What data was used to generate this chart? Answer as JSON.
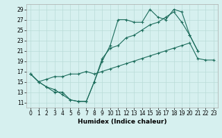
{
  "xlabel": "Humidex (Indice chaleur)",
  "line_color": "#1a6b5a",
  "bg_color": "#d6f0ef",
  "grid_color": "#b8dbd8",
  "xlim": [
    -0.5,
    23.5
  ],
  "ylim": [
    10,
    30
  ],
  "xticks": [
    0,
    1,
    2,
    3,
    4,
    5,
    6,
    7,
    8,
    9,
    10,
    11,
    12,
    13,
    14,
    15,
    16,
    17,
    18,
    19,
    20,
    21,
    22,
    23
  ],
  "yticks": [
    11,
    13,
    15,
    17,
    19,
    21,
    23,
    25,
    27,
    29
  ],
  "line1_x": [
    0,
    1,
    2,
    3,
    4,
    5,
    6,
    7,
    8,
    9,
    10,
    11,
    12,
    13,
    14,
    15,
    16,
    17,
    18,
    19,
    20,
    21
  ],
  "line1_y": [
    16.5,
    15.0,
    14.0,
    13.5,
    12.5,
    11.5,
    11.2,
    11.2,
    15.0,
    19.0,
    22.0,
    27.0,
    27.0,
    26.5,
    26.5,
    29.0,
    27.5,
    27.0,
    29.0,
    28.5,
    24.0,
    21.0
  ],
  "line2_x": [
    0,
    1,
    2,
    3,
    4,
    5,
    6,
    7,
    8,
    9,
    10,
    11,
    12,
    13,
    14,
    15,
    16,
    17,
    18,
    19,
    20,
    21
  ],
  "line2_y": [
    16.5,
    15.0,
    14.0,
    13.0,
    13.0,
    11.5,
    11.2,
    11.2,
    15.0,
    19.5,
    21.5,
    22.0,
    23.5,
    24.0,
    25.0,
    26.0,
    26.5,
    27.5,
    28.5,
    26.5,
    24.0,
    21.0
  ],
  "line3_x": [
    0,
    1,
    2,
    3,
    4,
    5,
    6,
    7,
    8,
    9,
    10,
    11,
    12,
    13,
    14,
    15,
    16,
    17,
    18,
    19,
    20,
    21,
    22,
    23
  ],
  "line3_y": [
    16.5,
    15.0,
    15.5,
    16.0,
    16.0,
    16.5,
    16.5,
    17.0,
    16.5,
    17.0,
    17.5,
    18.0,
    18.5,
    19.0,
    19.5,
    20.0,
    20.5,
    21.0,
    21.5,
    22.0,
    22.5,
    19.5,
    19.2,
    19.2
  ],
  "marker_size": 3.0,
  "line_width": 0.8,
  "xlabel_fontsize": 6.5,
  "tick_fontsize": 5.5
}
